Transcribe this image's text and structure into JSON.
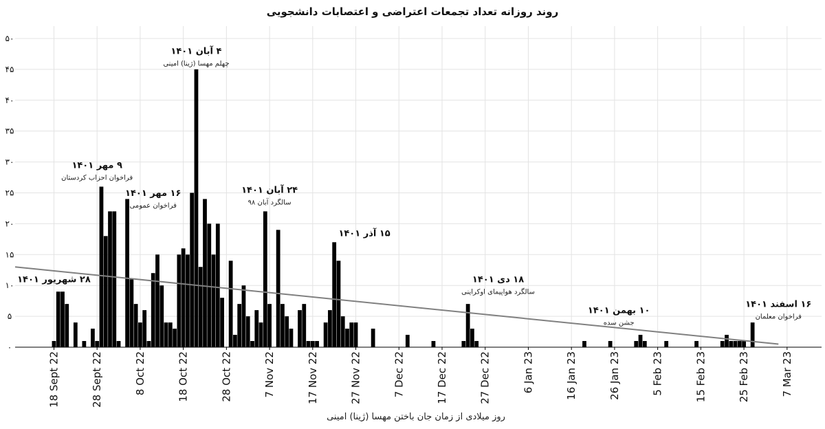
{
  "chart_data": {
    "type": "bar",
    "title": "روند روزانه تعداد تجمعات اعتراضی و اعتصابات دانشجویی",
    "xlabel": "روز میلادی از زمان جان باختن مهسا (ژینا) امینی",
    "ylabel": "",
    "ylim": [
      0,
      52
    ],
    "yticks": [
      {
        "value": 0,
        "label": "۰"
      },
      {
        "value": 5,
        "label": "۵"
      },
      {
        "value": 10,
        "label": "۱۰"
      },
      {
        "value": 15,
        "label": "۱۵"
      },
      {
        "value": 20,
        "label": "۲۰"
      },
      {
        "value": 25,
        "label": "۲۵"
      },
      {
        "value": 30,
        "label": "۳۰"
      },
      {
        "value": 35,
        "label": "۳۵"
      },
      {
        "value": 40,
        "label": "۴۰"
      },
      {
        "value": 45,
        "label": "۴۵"
      },
      {
        "value": 50,
        "label": "۵۰"
      }
    ],
    "xticks": [
      {
        "day": 0,
        "label": "18 Sept 22"
      },
      {
        "day": 10,
        "label": "28 Sept 22"
      },
      {
        "day": 20,
        "label": "8 Oct 22"
      },
      {
        "day": 30,
        "label": "18 Oct 22"
      },
      {
        "day": 40,
        "label": "28 Oct 22"
      },
      {
        "day": 50,
        "label": "7 Nov 22"
      },
      {
        "day": 60,
        "label": "17 Nov 22"
      },
      {
        "day": 70,
        "label": "27 Nov 22"
      },
      {
        "day": 80,
        "label": "7 Dec 22"
      },
      {
        "day": 90,
        "label": "17 Dec 22"
      },
      {
        "day": 100,
        "label": "27 Dec 22"
      },
      {
        "day": 110,
        "label": "6 Jan 23"
      },
      {
        "day": 120,
        "label": "16 Jan 23"
      },
      {
        "day": 130,
        "label": "26 Jan 23"
      },
      {
        "day": 140,
        "label": "5 Feb 23"
      },
      {
        "day": 150,
        "label": "15 Feb 23"
      },
      {
        "day": 160,
        "label": "25 Feb 23"
      },
      {
        "day": 170,
        "label": "7 Mar 23"
      }
    ],
    "xlim": [
      -9,
      178
    ],
    "bars": [
      {
        "day": 0,
        "value": 1
      },
      {
        "day": 1,
        "value": 9
      },
      {
        "day": 2,
        "value": 9
      },
      {
        "day": 3,
        "value": 7
      },
      {
        "day": 5,
        "value": 4
      },
      {
        "day": 7,
        "value": 1
      },
      {
        "day": 9,
        "value": 3
      },
      {
        "day": 10,
        "value": 1
      },
      {
        "day": 11,
        "value": 26
      },
      {
        "day": 12,
        "value": 18
      },
      {
        "day": 13,
        "value": 22
      },
      {
        "day": 14,
        "value": 22
      },
      {
        "day": 15,
        "value": 1
      },
      {
        "day": 17,
        "value": 24
      },
      {
        "day": 18,
        "value": 11
      },
      {
        "day": 19,
        "value": 7
      },
      {
        "day": 20,
        "value": 4
      },
      {
        "day": 21,
        "value": 6
      },
      {
        "day": 22,
        "value": 1
      },
      {
        "day": 23,
        "value": 12
      },
      {
        "day": 24,
        "value": 15
      },
      {
        "day": 25,
        "value": 10
      },
      {
        "day": 26,
        "value": 4
      },
      {
        "day": 27,
        "value": 4
      },
      {
        "day": 28,
        "value": 3
      },
      {
        "day": 29,
        "value": 15
      },
      {
        "day": 30,
        "value": 16
      },
      {
        "day": 31,
        "value": 15
      },
      {
        "day": 32,
        "value": 25
      },
      {
        "day": 33,
        "value": 45
      },
      {
        "day": 34,
        "value": 13
      },
      {
        "day": 35,
        "value": 24
      },
      {
        "day": 36,
        "value": 20
      },
      {
        "day": 37,
        "value": 15
      },
      {
        "day": 38,
        "value": 20
      },
      {
        "day": 39,
        "value": 8
      },
      {
        "day": 41,
        "value": 14
      },
      {
        "day": 42,
        "value": 2
      },
      {
        "day": 43,
        "value": 7
      },
      {
        "day": 44,
        "value": 10
      },
      {
        "day": 45,
        "value": 5
      },
      {
        "day": 46,
        "value": 1
      },
      {
        "day": 47,
        "value": 6
      },
      {
        "day": 48,
        "value": 4
      },
      {
        "day": 49,
        "value": 22
      },
      {
        "day": 50,
        "value": 7
      },
      {
        "day": 52,
        "value": 19
      },
      {
        "day": 53,
        "value": 7
      },
      {
        "day": 54,
        "value": 5
      },
      {
        "day": 55,
        "value": 3
      },
      {
        "day": 57,
        "value": 6
      },
      {
        "day": 58,
        "value": 7
      },
      {
        "day": 59,
        "value": 1
      },
      {
        "day": 60,
        "value": 1
      },
      {
        "day": 61,
        "value": 1
      },
      {
        "day": 63,
        "value": 4
      },
      {
        "day": 64,
        "value": 6
      },
      {
        "day": 65,
        "value": 17
      },
      {
        "day": 66,
        "value": 14
      },
      {
        "day": 67,
        "value": 5
      },
      {
        "day": 68,
        "value": 3
      },
      {
        "day": 69,
        "value": 4
      },
      {
        "day": 70,
        "value": 4
      },
      {
        "day": 74,
        "value": 3
      },
      {
        "day": 82,
        "value": 2
      },
      {
        "day": 88,
        "value": 1
      },
      {
        "day": 95,
        "value": 1
      },
      {
        "day": 96,
        "value": 7
      },
      {
        "day": 97,
        "value": 3
      },
      {
        "day": 98,
        "value": 1
      },
      {
        "day": 123,
        "value": 1
      },
      {
        "day": 129,
        "value": 1
      },
      {
        "day": 135,
        "value": 1
      },
      {
        "day": 136,
        "value": 2
      },
      {
        "day": 137,
        "value": 1
      },
      {
        "day": 142,
        "value": 1
      },
      {
        "day": 149,
        "value": 1
      },
      {
        "day": 155,
        "value": 1
      },
      {
        "day": 156,
        "value": 2
      },
      {
        "day": 157,
        "value": 1
      },
      {
        "day": 158,
        "value": 1
      },
      {
        "day": 159,
        "value": 1
      },
      {
        "day": 160,
        "value": 1
      },
      {
        "day": 162,
        "value": 4
      }
    ],
    "trendline": {
      "from": {
        "day": -9,
        "value": 13
      },
      "to": {
        "day": 168,
        "value": 0.5
      },
      "color": "#808080"
    },
    "bar_color": "#000000",
    "grid": true,
    "annotations": [
      {
        "day": 33,
        "value": 47.5,
        "label": "۴ آبان ۱۴۰۱",
        "sublabel": "چهلم مهسا (ژینا) امینی"
      },
      {
        "day": 10,
        "value": 29,
        "label": "۹ مهر ۱۴۰۱",
        "sublabel": "فراخوان احزاب کردستان"
      },
      {
        "day": 23,
        "value": 24.5,
        "label": "۱۶ مهر ۱۴۰۱",
        "sublabel": "فراخوان عمومی"
      },
      {
        "day": 50,
        "value": 25,
        "label": "۲۴ آبان ۱۴۰۱",
        "sublabel": "سالگرد آبان ۹۸"
      },
      {
        "day": 72,
        "value": 18,
        "label": "۱۵ آذر ۱۴۰۱",
        "sublabel": ""
      },
      {
        "day": 0,
        "value": 10.5,
        "label": "۲۸ شهریور ۱۴۰۱",
        "sublabel": ""
      },
      {
        "day": 103,
        "value": 10.5,
        "label": "۱۸ دی ۱۴۰۱",
        "sublabel": "سالگرد هواپیمای اوکراینی"
      },
      {
        "day": 131,
        "value": 5.5,
        "label": "۱۰ بهمن ۱۴۰۱",
        "sublabel": "جشن سده"
      },
      {
        "day": 168,
        "value": 6.5,
        "label": "۱۶ اسفند ۱۴۰۱",
        "sublabel": "فراخوان معلمان"
      }
    ]
  }
}
